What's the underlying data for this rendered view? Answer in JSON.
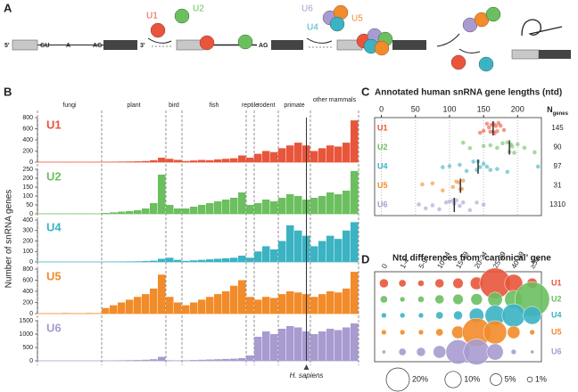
{
  "figure": {
    "panels": [
      "A",
      "B",
      "C",
      "D"
    ]
  },
  "diagram": {
    "pre_mrna": [
      "5'",
      "GU",
      "A",
      "AG",
      "3'"
    ],
    "particles": [
      "U1",
      "U2",
      "U6",
      "U5",
      "U4"
    ],
    "intermediate": "AG"
  },
  "chart_data": [
    {
      "type": "bar",
      "y_label": "Number of snRNA genes",
      "taxa": [
        "fungi",
        "plant",
        "bird",
        "fish",
        "reptile",
        "rodent",
        "primate",
        "other mammals"
      ],
      "annotation": "H. sapiens",
      "series": [
        {
          "name": "U1",
          "color": "#e8553b",
          "ylim": [
            0,
            800
          ],
          "yticks": [
            0,
            200,
            400,
            600,
            800
          ],
          "values": [
            2,
            3,
            2,
            5,
            3,
            2,
            4,
            3,
            5,
            8,
            10,
            12,
            15,
            20,
            35,
            80,
            60,
            40,
            20,
            30,
            40,
            35,
            50,
            60,
            70,
            120,
            80,
            150,
            200,
            180,
            250,
            300,
            350,
            300,
            200,
            250,
            300,
            280,
            350,
            750
          ]
        },
        {
          "name": "U2",
          "color": "#6cbf5f",
          "ylim": [
            0,
            250
          ],
          "yticks": [
            0,
            50,
            100,
            150,
            200,
            250
          ],
          "values": [
            1,
            1,
            2,
            1,
            1,
            2,
            1,
            1,
            5,
            8,
            12,
            15,
            20,
            30,
            60,
            220,
            50,
            30,
            30,
            40,
            50,
            60,
            70,
            80,
            90,
            120,
            50,
            60,
            80,
            70,
            90,
            110,
            100,
            80,
            90,
            100,
            120,
            110,
            130,
            240
          ]
        },
        {
          "name": "U4",
          "color": "#3bb3c3",
          "ylim": [
            0,
            400
          ],
          "yticks": [
            0,
            100,
            200,
            300,
            400
          ],
          "values": [
            1,
            1,
            1,
            1,
            1,
            1,
            1,
            1,
            2,
            3,
            4,
            5,
            6,
            8,
            12,
            30,
            40,
            20,
            10,
            15,
            20,
            25,
            30,
            35,
            40,
            60,
            40,
            100,
            150,
            120,
            200,
            350,
            300,
            250,
            150,
            200,
            250,
            220,
            300,
            380
          ]
        },
        {
          "name": "U5",
          "color": "#f28b2a",
          "ylim": [
            0,
            800
          ],
          "yticks": [
            0,
            200,
            400,
            600,
            800
          ],
          "values": [
            5,
            8,
            6,
            10,
            8,
            6,
            10,
            8,
            100,
            150,
            200,
            250,
            300,
            350,
            450,
            700,
            300,
            200,
            150,
            200,
            250,
            300,
            350,
            400,
            500,
            600,
            300,
            250,
            300,
            280,
            350,
            400,
            380,
            350,
            300,
            350,
            400,
            380,
            450,
            750
          ]
        },
        {
          "name": "U6",
          "color": "#a89bd0",
          "ylim": [
            0,
            1500
          ],
          "yticks": [
            0,
            500,
            1000,
            1500
          ],
          "values": [
            5,
            5,
            5,
            5,
            5,
            5,
            5,
            5,
            10,
            15,
            20,
            25,
            30,
            40,
            60,
            150,
            20,
            15,
            20,
            30,
            40,
            50,
            60,
            70,
            80,
            100,
            200,
            900,
            1100,
            1000,
            1200,
            1300,
            1250,
            1100,
            1000,
            1100,
            1200,
            1150,
            1250,
            1400
          ]
        }
      ]
    },
    {
      "type": "strip",
      "title": "Annotated human snRNA gene lengths (ntd)",
      "xlim": [
        -10,
        235
      ],
      "xticks": [
        0,
        50,
        100,
        150,
        200
      ],
      "grid": true,
      "n_label": "N",
      "n_label_sub": "genes",
      "series": [
        {
          "name": "U1",
          "color": "#e8553b",
          "n": 145,
          "median": 164,
          "values": [
            145,
            150,
            155,
            158,
            160,
            162,
            164,
            165,
            166,
            168,
            170,
            172,
            175,
            180
          ]
        },
        {
          "name": "U2",
          "color": "#6cbf5f",
          "n": 90,
          "median": 188,
          "values": [
            120,
            130,
            150,
            160,
            170,
            178,
            185,
            188,
            190,
            192,
            195,
            200,
            210,
            225
          ]
        },
        {
          "name": "U4",
          "color": "#3bb3c3",
          "n": 97,
          "median": 142,
          "values": [
            90,
            100,
            115,
            125,
            135,
            140,
            142,
            145,
            150,
            155,
            160,
            170,
            185,
            230
          ]
        },
        {
          "name": "U5",
          "color": "#f28b2a",
          "n": 31,
          "median": 116,
          "values": [
            60,
            75,
            90,
            105,
            110,
            114,
            116,
            118,
            120
          ]
        },
        {
          "name": "U6",
          "color": "#a89bd0",
          "n": 1310,
          "median": 107,
          "values": [
            55,
            65,
            75,
            85,
            95,
            100,
            105,
            107,
            110,
            115,
            120,
            130,
            140,
            150
          ]
        }
      ]
    },
    {
      "type": "bubble",
      "title": "Ntd differences from ‘canonical’ gene",
      "categories": [
        "0",
        "1-4",
        "5-9",
        "10-14",
        "15-19",
        "20-24",
        "25-39",
        "40-49",
        "≥50"
      ],
      "size_legend": [
        {
          "value": 20,
          "label": "20%"
        },
        {
          "value": 10,
          "label": "10%"
        },
        {
          "value": 5,
          "label": "5%"
        },
        {
          "value": 1,
          "label": "1%"
        }
      ],
      "series": [
        {
          "name": "U1",
          "color": "#e8553b",
          "values": [
            3,
            2,
            1.5,
            3,
            4,
            6,
            35,
            12,
            4
          ]
        },
        {
          "name": "U2",
          "color": "#6cbf5f",
          "values": [
            2,
            1,
            1.5,
            3,
            4,
            5,
            8,
            12,
            45
          ]
        },
        {
          "name": "U4",
          "color": "#3bb3c3",
          "values": [
            1,
            1,
            1,
            2,
            3,
            8,
            15,
            20,
            12
          ]
        },
        {
          "name": "U5",
          "color": "#f28b2a",
          "values": [
            1,
            1,
            1,
            2,
            6,
            30,
            20,
            6,
            1
          ]
        },
        {
          "name": "U6",
          "color": "#a89bd0",
          "values": [
            0.5,
            2,
            3,
            6,
            22,
            25,
            10,
            1,
            0.5
          ]
        }
      ]
    }
  ]
}
